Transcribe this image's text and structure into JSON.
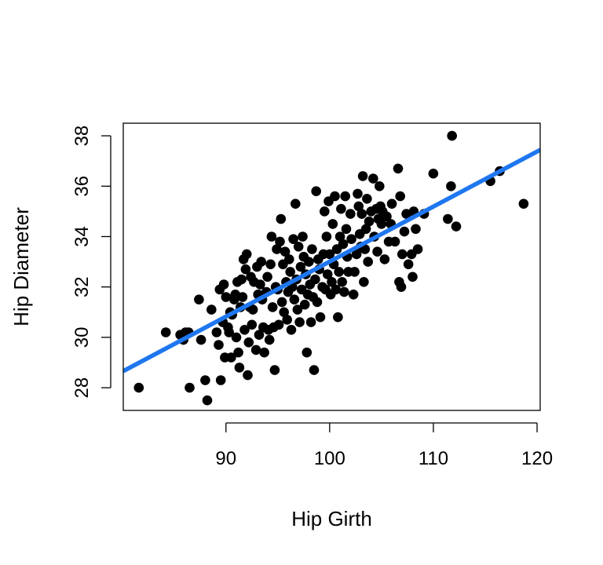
{
  "chart_data": {
    "type": "scatter",
    "title": "",
    "xlabel": "Hip Girth",
    "ylabel": "Hip Diameter",
    "xlim": [
      80.1,
      120.3
    ],
    "ylim": [
      27.1,
      38.5
    ],
    "xticks": [
      90,
      100,
      110,
      120
    ],
    "yticks": [
      28,
      30,
      32,
      34,
      36,
      38
    ],
    "grid": false,
    "legend": "none",
    "point_color": "#000000",
    "line_color": "#1f77f0",
    "regression_line": {
      "x": [
        80.1,
        120.3
      ],
      "y": [
        28.66,
        37.44
      ]
    },
    "points": [
      {
        "x": 81.6,
        "y": 28.0
      },
      {
        "x": 84.2,
        "y": 30.2
      },
      {
        "x": 85.6,
        "y": 30.1
      },
      {
        "x": 85.9,
        "y": 29.9
      },
      {
        "x": 86.1,
        "y": 30.2
      },
      {
        "x": 86.4,
        "y": 30.2
      },
      {
        "x": 86.5,
        "y": 28.0
      },
      {
        "x": 87.4,
        "y": 31.5
      },
      {
        "x": 87.6,
        "y": 29.9
      },
      {
        "x": 88.0,
        "y": 28.3
      },
      {
        "x": 88.2,
        "y": 27.5
      },
      {
        "x": 88.6,
        "y": 31.1
      },
      {
        "x": 89.1,
        "y": 30.2
      },
      {
        "x": 89.3,
        "y": 29.7
      },
      {
        "x": 89.4,
        "y": 31.9
      },
      {
        "x": 89.5,
        "y": 28.3
      },
      {
        "x": 89.7,
        "y": 30.6
      },
      {
        "x": 89.8,
        "y": 32.1
      },
      {
        "x": 89.9,
        "y": 29.2
      },
      {
        "x": 90.0,
        "y": 31.6
      },
      {
        "x": 90.2,
        "y": 30.4
      },
      {
        "x": 90.3,
        "y": 30.2
      },
      {
        "x": 90.4,
        "y": 31.0
      },
      {
        "x": 90.5,
        "y": 29.2
      },
      {
        "x": 90.6,
        "y": 30.9
      },
      {
        "x": 90.8,
        "y": 31.5
      },
      {
        "x": 90.9,
        "y": 31.7
      },
      {
        "x": 91.0,
        "y": 30.0
      },
      {
        "x": 91.1,
        "y": 32.2
      },
      {
        "x": 91.2,
        "y": 29.4
      },
      {
        "x": 91.3,
        "y": 28.8
      },
      {
        "x": 91.4,
        "y": 31.2
      },
      {
        "x": 91.5,
        "y": 32.3
      },
      {
        "x": 91.6,
        "y": 31.6
      },
      {
        "x": 91.7,
        "y": 33.1
      },
      {
        "x": 91.8,
        "y": 30.3
      },
      {
        "x": 91.9,
        "y": 32.7
      },
      {
        "x": 92.0,
        "y": 33.3
      },
      {
        "x": 92.1,
        "y": 28.5
      },
      {
        "x": 92.2,
        "y": 29.8
      },
      {
        "x": 92.3,
        "y": 31.2
      },
      {
        "x": 92.4,
        "y": 32.4
      },
      {
        "x": 92.5,
        "y": 30.5
      },
      {
        "x": 92.6,
        "y": 31.1
      },
      {
        "x": 92.7,
        "y": 32.2
      },
      {
        "x": 92.9,
        "y": 29.5
      },
      {
        "x": 93.0,
        "y": 32.8
      },
      {
        "x": 93.1,
        "y": 31.7
      },
      {
        "x": 93.2,
        "y": 30.1
      },
      {
        "x": 93.3,
        "y": 32.1
      },
      {
        "x": 93.4,
        "y": 33.0
      },
      {
        "x": 93.5,
        "y": 31.5
      },
      {
        "x": 93.6,
        "y": 30.4
      },
      {
        "x": 93.7,
        "y": 29.4
      },
      {
        "x": 93.9,
        "y": 31.8
      },
      {
        "x": 94.0,
        "y": 32.4
      },
      {
        "x": 94.1,
        "y": 30.3
      },
      {
        "x": 94.2,
        "y": 29.9
      },
      {
        "x": 94.3,
        "y": 32.9
      },
      {
        "x": 94.4,
        "y": 34.0
      },
      {
        "x": 94.5,
        "y": 31.2
      },
      {
        "x": 94.6,
        "y": 30.4
      },
      {
        "x": 94.7,
        "y": 28.7
      },
      {
        "x": 94.8,
        "y": 32.0
      },
      {
        "x": 94.9,
        "y": 33.5
      },
      {
        "x": 95.0,
        "y": 31.9
      },
      {
        "x": 95.1,
        "y": 30.5
      },
      {
        "x": 95.2,
        "y": 33.8
      },
      {
        "x": 95.3,
        "y": 34.7
      },
      {
        "x": 95.4,
        "y": 31.4
      },
      {
        "x": 95.5,
        "y": 32.9
      },
      {
        "x": 95.6,
        "y": 31.0
      },
      {
        "x": 95.7,
        "y": 33.4
      },
      {
        "x": 95.8,
        "y": 32.2
      },
      {
        "x": 95.9,
        "y": 30.7
      },
      {
        "x": 96.0,
        "y": 31.8
      },
      {
        "x": 96.1,
        "y": 33.1
      },
      {
        "x": 96.2,
        "y": 32.6
      },
      {
        "x": 96.3,
        "y": 30.3
      },
      {
        "x": 96.4,
        "y": 32.0
      },
      {
        "x": 96.5,
        "y": 33.9
      },
      {
        "x": 96.6,
        "y": 31.5
      },
      {
        "x": 96.7,
        "y": 35.3
      },
      {
        "x": 96.8,
        "y": 32.3
      },
      {
        "x": 96.9,
        "y": 31.1
      },
      {
        "x": 97.0,
        "y": 33.6
      },
      {
        "x": 97.1,
        "y": 30.6
      },
      {
        "x": 97.2,
        "y": 32.8
      },
      {
        "x": 97.3,
        "y": 31.9
      },
      {
        "x": 97.4,
        "y": 34.0
      },
      {
        "x": 97.5,
        "y": 33.2
      },
      {
        "x": 97.6,
        "y": 31.3
      },
      {
        "x": 97.7,
        "y": 32.5
      },
      {
        "x": 97.8,
        "y": 29.4
      },
      {
        "x": 97.9,
        "y": 31.7
      },
      {
        "x": 98.0,
        "y": 33.0
      },
      {
        "x": 98.1,
        "y": 32.1
      },
      {
        "x": 98.2,
        "y": 30.6
      },
      {
        "x": 98.3,
        "y": 33.5
      },
      {
        "x": 98.4,
        "y": 31.6
      },
      {
        "x": 98.5,
        "y": 28.7
      },
      {
        "x": 98.6,
        "y": 32.3
      },
      {
        "x": 98.7,
        "y": 35.8
      },
      {
        "x": 98.8,
        "y": 31.4
      },
      {
        "x": 98.9,
        "y": 33.1
      },
      {
        "x": 99.0,
        "y": 32.7
      },
      {
        "x": 99.1,
        "y": 30.8
      },
      {
        "x": 99.3,
        "y": 32.0
      },
      {
        "x": 99.4,
        "y": 33.3
      },
      {
        "x": 99.5,
        "y": 35.0
      },
      {
        "x": 99.6,
        "y": 31.9
      },
      {
        "x": 99.7,
        "y": 34.0
      },
      {
        "x": 99.8,
        "y": 32.5
      },
      {
        "x": 99.9,
        "y": 35.4
      },
      {
        "x": 100.0,
        "y": 33.3
      },
      {
        "x": 100.1,
        "y": 31.7
      },
      {
        "x": 100.2,
        "y": 32.2
      },
      {
        "x": 100.3,
        "y": 34.5
      },
      {
        "x": 100.4,
        "y": 32.9
      },
      {
        "x": 100.5,
        "y": 35.6
      },
      {
        "x": 100.6,
        "y": 31.9
      },
      {
        "x": 100.7,
        "y": 33.5
      },
      {
        "x": 100.8,
        "y": 30.8
      },
      {
        "x": 100.9,
        "y": 32.6
      },
      {
        "x": 101.0,
        "y": 34.0
      },
      {
        "x": 101.1,
        "y": 35.1
      },
      {
        "x": 101.2,
        "y": 32.2
      },
      {
        "x": 101.3,
        "y": 33.7
      },
      {
        "x": 101.4,
        "y": 31.8
      },
      {
        "x": 101.5,
        "y": 35.6
      },
      {
        "x": 101.6,
        "y": 34.3
      },
      {
        "x": 101.7,
        "y": 33.2
      },
      {
        "x": 101.8,
        "y": 32.6
      },
      {
        "x": 102.0,
        "y": 34.9
      },
      {
        "x": 102.1,
        "y": 33.9
      },
      {
        "x": 102.3,
        "y": 31.7
      },
      {
        "x": 102.4,
        "y": 32.6
      },
      {
        "x": 102.6,
        "y": 33.3
      },
      {
        "x": 102.7,
        "y": 35.7
      },
      {
        "x": 102.8,
        "y": 35.2
      },
      {
        "x": 102.9,
        "y": 34.1
      },
      {
        "x": 103.0,
        "y": 33.6
      },
      {
        "x": 103.1,
        "y": 34.9
      },
      {
        "x": 103.2,
        "y": 36.4
      },
      {
        "x": 103.3,
        "y": 32.2
      },
      {
        "x": 103.4,
        "y": 33.5
      },
      {
        "x": 103.5,
        "y": 34.3
      },
      {
        "x": 103.6,
        "y": 35.5
      },
      {
        "x": 103.7,
        "y": 33.0
      },
      {
        "x": 103.8,
        "y": 34.6
      },
      {
        "x": 104.0,
        "y": 35.0
      },
      {
        "x": 104.2,
        "y": 36.3
      },
      {
        "x": 104.3,
        "y": 34.0
      },
      {
        "x": 104.5,
        "y": 35.1
      },
      {
        "x": 104.6,
        "y": 33.4
      },
      {
        "x": 104.7,
        "y": 34.7
      },
      {
        "x": 104.8,
        "y": 36.0
      },
      {
        "x": 104.9,
        "y": 35.2
      },
      {
        "x": 105.0,
        "y": 34.5
      },
      {
        "x": 105.1,
        "y": 35.0
      },
      {
        "x": 105.3,
        "y": 33.1
      },
      {
        "x": 105.5,
        "y": 34.8
      },
      {
        "x": 105.7,
        "y": 33.8
      },
      {
        "x": 105.9,
        "y": 34.5
      },
      {
        "x": 106.0,
        "y": 35.3
      },
      {
        "x": 106.3,
        "y": 33.8
      },
      {
        "x": 106.6,
        "y": 36.7
      },
      {
        "x": 106.7,
        "y": 32.2
      },
      {
        "x": 106.8,
        "y": 35.6
      },
      {
        "x": 106.9,
        "y": 32.0
      },
      {
        "x": 107.0,
        "y": 33.3
      },
      {
        "x": 107.2,
        "y": 34.2
      },
      {
        "x": 107.4,
        "y": 34.9
      },
      {
        "x": 107.6,
        "y": 32.9
      },
      {
        "x": 107.9,
        "y": 33.3
      },
      {
        "x": 108.0,
        "y": 32.4
      },
      {
        "x": 108.1,
        "y": 35.0
      },
      {
        "x": 108.3,
        "y": 34.3
      },
      {
        "x": 108.5,
        "y": 33.5
      },
      {
        "x": 109.1,
        "y": 34.9
      },
      {
        "x": 110.0,
        "y": 36.5
      },
      {
        "x": 111.4,
        "y": 34.7
      },
      {
        "x": 111.7,
        "y": 36.0
      },
      {
        "x": 111.8,
        "y": 38.0
      },
      {
        "x": 112.2,
        "y": 34.4
      },
      {
        "x": 115.5,
        "y": 36.2
      },
      {
        "x": 116.4,
        "y": 36.6
      },
      {
        "x": 118.7,
        "y": 35.3
      }
    ]
  }
}
